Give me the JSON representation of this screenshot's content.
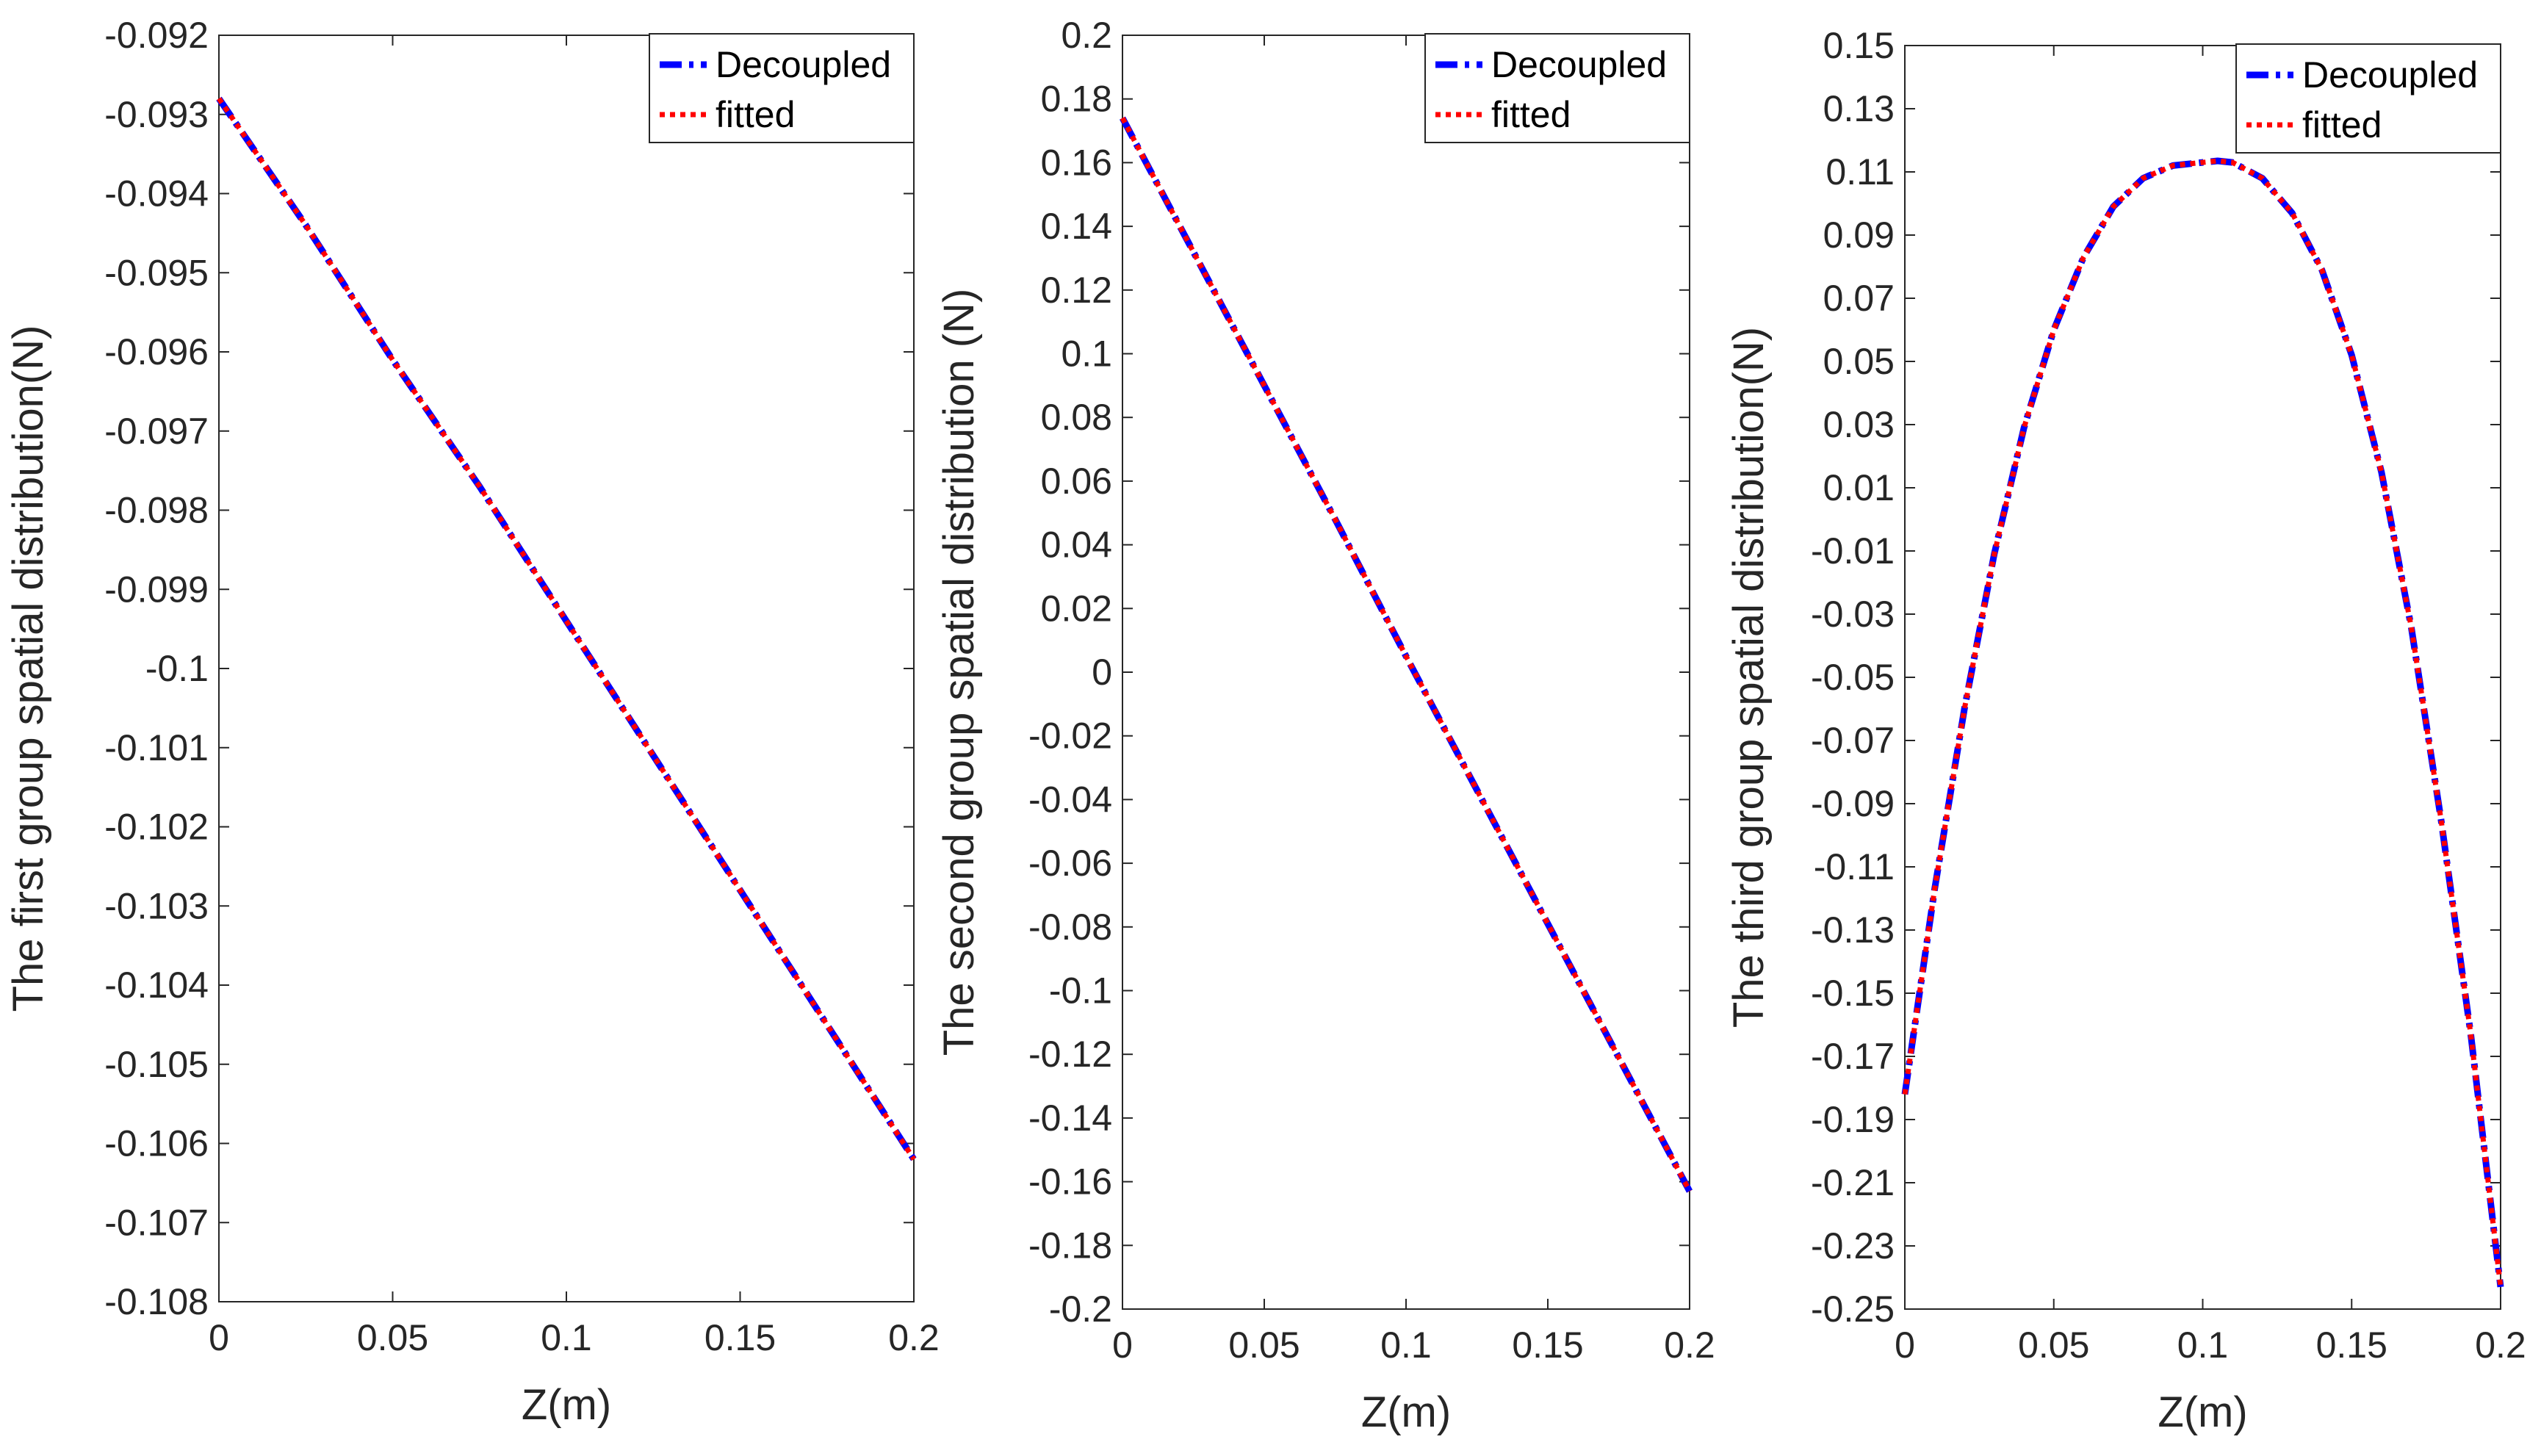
{
  "colors": {
    "decoupled": "#0000ff",
    "fitted": "#ff0000",
    "axis": "#262626",
    "background": "#ffffff"
  },
  "chart_data": [
    {
      "type": "line",
      "xlabel": "Z(m)",
      "ylabel": "The first group spatial distribution(N)",
      "xlim": [
        0,
        0.2
      ],
      "ylim": [
        -0.108,
        -0.092
      ],
      "xticks": [
        0,
        0.05,
        0.1,
        0.15,
        0.2
      ],
      "xtick_labels": [
        "0",
        "0.05",
        "0.1",
        "0.15",
        "0.2"
      ],
      "yticks": [
        -0.092,
        -0.093,
        -0.094,
        -0.095,
        -0.096,
        -0.097,
        -0.098,
        -0.099,
        -0.1,
        -0.101,
        -0.102,
        -0.103,
        -0.104,
        -0.105,
        -0.106,
        -0.107,
        -0.108
      ],
      "ytick_labels": [
        "-0.092",
        "-0.093",
        "-0.094",
        "-0.095",
        "-0.096",
        "-0.097",
        "-0.098",
        "-0.099",
        "-0.1",
        "-0.101",
        "-0.102",
        "-0.103",
        "-0.104",
        "-0.105",
        "-0.106",
        "-0.107",
        "-0.108"
      ],
      "legend": "top-right",
      "grid": false,
      "series": [
        {
          "name": "Decoupled",
          "style": "dash-dot",
          "x": [
            0,
            0.025,
            0.05,
            0.075,
            0.1,
            0.125,
            0.15,
            0.175,
            0.2
          ],
          "y": [
            -0.0928,
            -0.0944,
            -0.0961,
            -0.0977,
            -0.0994,
            -0.1011,
            -0.1028,
            -0.1045,
            -0.1062
          ]
        },
        {
          "name": "fitted",
          "style": "dotted",
          "x": [
            0,
            0.025,
            0.05,
            0.075,
            0.1,
            0.125,
            0.15,
            0.175,
            0.2
          ],
          "y": [
            -0.0928,
            -0.0944,
            -0.0961,
            -0.0977,
            -0.0994,
            -0.1011,
            -0.1028,
            -0.1045,
            -0.1062
          ]
        }
      ]
    },
    {
      "type": "line",
      "xlabel": "Z(m)",
      "ylabel": "The second group spatial distribution (N)",
      "xlim": [
        0,
        0.2
      ],
      "ylim": [
        -0.2,
        0.2
      ],
      "xticks": [
        0,
        0.05,
        0.1,
        0.15,
        0.2
      ],
      "xtick_labels": [
        "0",
        "0.05",
        "0.1",
        "0.15",
        "0.2"
      ],
      "yticks": [
        0.2,
        0.18,
        0.16,
        0.14,
        0.12,
        0.1,
        0.08,
        0.06,
        0.04,
        0.02,
        0,
        -0.02,
        -0.04,
        -0.06,
        -0.08,
        -0.1,
        -0.12,
        -0.14,
        -0.16,
        -0.18,
        -0.2
      ],
      "ytick_labels": [
        "0.2",
        "0.18",
        "0.16",
        "0.14",
        "0.12",
        "0.1",
        "0.08",
        "0.06",
        "0.04",
        "0.02",
        "0",
        "-0.02",
        "-0.04",
        "-0.06",
        "-0.08",
        "-0.1",
        "-0.12",
        "-0.14",
        "-0.16",
        "-0.18",
        "-0.2"
      ],
      "legend": "top-right",
      "grid": false,
      "series": [
        {
          "name": "Decoupled",
          "style": "dash-dot",
          "x": [
            0,
            0.025,
            0.05,
            0.075,
            0.1,
            0.125,
            0.15,
            0.175,
            0.2
          ],
          "y": [
            0.174,
            0.132,
            0.09,
            0.048,
            0.005,
            -0.037,
            -0.079,
            -0.121,
            -0.163
          ]
        },
        {
          "name": "fitted",
          "style": "dotted",
          "x": [
            0,
            0.025,
            0.05,
            0.075,
            0.1,
            0.125,
            0.15,
            0.175,
            0.2
          ],
          "y": [
            0.174,
            0.132,
            0.09,
            0.048,
            0.005,
            -0.037,
            -0.079,
            -0.121,
            -0.163
          ]
        }
      ]
    },
    {
      "type": "line",
      "xlabel": "Z(m)",
      "ylabel": "The third group spatial distribution(N)",
      "xlim": [
        0,
        0.2
      ],
      "ylim": [
        -0.25,
        0.15
      ],
      "xticks": [
        0,
        0.05,
        0.1,
        0.15,
        0.2
      ],
      "xtick_labels": [
        "0",
        "0.05",
        "0.1",
        "0.15",
        "0.2"
      ],
      "yticks": [
        0.15,
        0.13,
        0.11,
        0.09,
        0.07,
        0.05,
        0.03,
        0.01,
        -0.01,
        -0.03,
        -0.05,
        -0.07,
        -0.09,
        -0.11,
        -0.13,
        -0.15,
        -0.17,
        -0.19,
        -0.21,
        -0.23,
        -0.25
      ],
      "ytick_labels": [
        "0.15",
        "0.13",
        "0.11",
        "0.09",
        "0.07",
        "0.05",
        "0.03",
        "0.01",
        "-0.01",
        "-0.03",
        "-0.05",
        "-0.07",
        "-0.09",
        "-0.11",
        "-0.13",
        "-0.15",
        "-0.17",
        "-0.19",
        "-0.21",
        "-0.23",
        "-0.25"
      ],
      "legend": "top-right",
      "grid": false,
      "series": [
        {
          "name": "Decoupled",
          "style": "dash-dot",
          "x": [
            0,
            0.01,
            0.02,
            0.03,
            0.04,
            0.05,
            0.06,
            0.07,
            0.08,
            0.09,
            0.1,
            0.105,
            0.11,
            0.12,
            0.13,
            0.14,
            0.15,
            0.16,
            0.17,
            0.18,
            0.19,
            0.2
          ],
          "y": [
            -0.182,
            -0.117,
            -0.06,
            -0.011,
            0.029,
            0.06,
            0.083,
            0.099,
            0.108,
            0.112,
            0.113,
            0.1135,
            0.113,
            0.108,
            0.097,
            0.079,
            0.052,
            0.015,
            -0.034,
            -0.095,
            -0.163,
            -0.243
          ]
        },
        {
          "name": "fitted",
          "style": "dotted",
          "x": [
            0,
            0.01,
            0.02,
            0.03,
            0.04,
            0.05,
            0.06,
            0.07,
            0.08,
            0.09,
            0.1,
            0.105,
            0.11,
            0.12,
            0.13,
            0.14,
            0.15,
            0.16,
            0.17,
            0.18,
            0.19,
            0.2
          ],
          "y": [
            -0.182,
            -0.117,
            -0.06,
            -0.011,
            0.029,
            0.06,
            0.083,
            0.099,
            0.108,
            0.112,
            0.113,
            0.1135,
            0.113,
            0.108,
            0.097,
            0.079,
            0.052,
            0.015,
            -0.034,
            -0.095,
            -0.163,
            -0.243
          ]
        }
      ]
    }
  ]
}
